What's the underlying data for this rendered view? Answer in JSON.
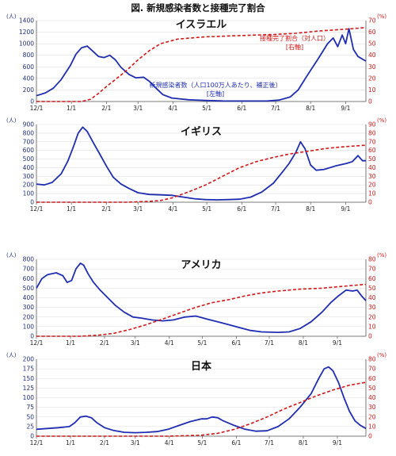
{
  "figure_title": "図. 新規感染者数と接種完了割合",
  "colors": {
    "cases": "#1f2db0",
    "vacc": "#d01818",
    "axis": "#555555",
    "grid": "#dddddd"
  },
  "chart_data": [
    {
      "type": "line",
      "title": "イスラエル",
      "x_ticks": [
        "12/1",
        "1/1",
        "2/1",
        "3/1",
        "4/1",
        "5/1",
        "6/1",
        "7/1",
        "8/1",
        "9/1"
      ],
      "left_unit": "(人)",
      "right_unit": "(%)",
      "ylim_left": [
        0,
        1400
      ],
      "yticks_left": [
        0,
        200,
        400,
        600,
        800,
        1000,
        1200,
        1400
      ],
      "ylim_right": [
        0,
        70
      ],
      "yticks_right": [
        0,
        10,
        20,
        30,
        40,
        50,
        60,
        70
      ],
      "annotation_right": [
        "接種完了割合（対人口）",
        "[右軸]"
      ],
      "annotation_left": [
        "新規感染者数（人口100万人あたり、補正後）",
        "[左軸]"
      ],
      "series": [
        {
          "axis": "left",
          "values": [
            [
              0,
              100
            ],
            [
              8,
              150
            ],
            [
              15,
              230
            ],
            [
              22,
              380
            ],
            [
              30,
              620
            ],
            [
              35,
              820
            ],
            [
              40,
              930
            ],
            [
              45,
              960
            ],
            [
              50,
              870
            ],
            [
              55,
              780
            ],
            [
              60,
              760
            ],
            [
              65,
              800
            ],
            [
              70,
              720
            ],
            [
              75,
              590
            ],
            [
              82,
              470
            ],
            [
              88,
              410
            ],
            [
              95,
              420
            ],
            [
              100,
              350
            ],
            [
              105,
              250
            ],
            [
              112,
              120
            ],
            [
              120,
              60
            ],
            [
              135,
              30
            ],
            [
              150,
              18
            ],
            [
              165,
              10
            ],
            [
              180,
              8
            ],
            [
              195,
              8
            ],
            [
              205,
              10
            ],
            [
              215,
              25
            ],
            [
              225,
              80
            ],
            [
              232,
              200
            ],
            [
              240,
              450
            ],
            [
              250,
              750
            ],
            [
              258,
              1000
            ],
            [
              263,
              1100
            ],
            [
              267,
              950
            ],
            [
              271,
              1150
            ],
            [
              274,
              1000
            ],
            [
              277,
              1260
            ],
            [
              281,
              900
            ],
            [
              285,
              780
            ],
            [
              290,
              720
            ],
            [
              292,
              700
            ]
          ]
        },
        {
          "axis": "right",
          "values": [
            [
              0,
              0
            ],
            [
              40,
              0
            ],
            [
              48,
              2
            ],
            [
              55,
              7
            ],
            [
              62,
              13
            ],
            [
              70,
              19
            ],
            [
              80,
              27
            ],
            [
              90,
              36
            ],
            [
              100,
              44
            ],
            [
              110,
              50
            ],
            [
              125,
              54
            ],
            [
              150,
              56
            ],
            [
              180,
              57
            ],
            [
              210,
              58
            ],
            [
              230,
              59
            ],
            [
              250,
              61
            ],
            [
              265,
              62
            ],
            [
              280,
              63
            ],
            [
              292,
              64
            ]
          ]
        }
      ]
    },
    {
      "type": "line",
      "title": "イギリス",
      "x_ticks": [
        "12/1",
        "1/1",
        "2/1",
        "3/1",
        "4/1",
        "5/1",
        "6/1",
        "7/1",
        "8/1",
        "9/1"
      ],
      "left_unit": "(人)",
      "right_unit": "(%)",
      "ylim_left": [
        0,
        900
      ],
      "yticks_left": [
        0,
        100,
        200,
        300,
        400,
        500,
        600,
        700,
        800,
        900
      ],
      "ylim_right": [
        0,
        90
      ],
      "yticks_right": [
        0,
        10,
        20,
        30,
        40,
        50,
        60,
        70,
        80,
        90
      ],
      "series": [
        {
          "axis": "left",
          "values": [
            [
              0,
              210
            ],
            [
              7,
              200
            ],
            [
              14,
              230
            ],
            [
              22,
              330
            ],
            [
              28,
              480
            ],
            [
              33,
              650
            ],
            [
              37,
              800
            ],
            [
              41,
              870
            ],
            [
              45,
              820
            ],
            [
              50,
              700
            ],
            [
              56,
              560
            ],
            [
              62,
              420
            ],
            [
              68,
              290
            ],
            [
              75,
              210
            ],
            [
              82,
              160
            ],
            [
              90,
              110
            ],
            [
              100,
              90
            ],
            [
              110,
              85
            ],
            [
              120,
              80
            ],
            [
              130,
              60
            ],
            [
              140,
              40
            ],
            [
              150,
              30
            ],
            [
              160,
              28
            ],
            [
              170,
              30
            ],
            [
              180,
              35
            ],
            [
              190,
              60
            ],
            [
              200,
              120
            ],
            [
              210,
              220
            ],
            [
              218,
              350
            ],
            [
              224,
              450
            ],
            [
              230,
              580
            ],
            [
              234,
              700
            ],
            [
              238,
              620
            ],
            [
              243,
              430
            ],
            [
              248,
              370
            ],
            [
              255,
              380
            ],
            [
              265,
              420
            ],
            [
              275,
              450
            ],
            [
              280,
              470
            ],
            [
              285,
              540
            ],
            [
              289,
              480
            ],
            [
              292,
              480
            ]
          ]
        },
        {
          "axis": "right",
          "values": [
            [
              0,
              0
            ],
            [
              80,
              0
            ],
            [
              100,
              1
            ],
            [
              110,
              2
            ],
            [
              120,
              5
            ],
            [
              135,
              12
            ],
            [
              150,
              20
            ],
            [
              165,
              30
            ],
            [
              180,
              40
            ],
            [
              195,
              47
            ],
            [
              210,
              52
            ],
            [
              225,
              56
            ],
            [
              240,
              59
            ],
            [
              255,
              62
            ],
            [
              270,
              64
            ],
            [
              292,
              66
            ]
          ]
        }
      ]
    },
    {
      "type": "line",
      "title": "アメリカ",
      "x_ticks": [
        "12/1",
        "1/1",
        "2/1",
        "3/1",
        "4/1",
        "5/1",
        "6/1",
        "7/1",
        "8/1",
        "9/1"
      ],
      "left_unit": "(人)",
      "right_unit": "(%)",
      "ylim_left": [
        0,
        800
      ],
      "yticks_left": [
        0,
        100,
        200,
        300,
        400,
        500,
        600,
        700,
        800
      ],
      "ylim_right": [
        0,
        80
      ],
      "yticks_right": [
        0,
        10,
        20,
        30,
        40,
        50,
        60,
        70,
        80
      ],
      "series": [
        {
          "axis": "left",
          "values": [
            [
              0,
              500
            ],
            [
              5,
              600
            ],
            [
              10,
              640
            ],
            [
              18,
              660
            ],
            [
              24,
              630
            ],
            [
              28,
              560
            ],
            [
              32,
              580
            ],
            [
              36,
              700
            ],
            [
              40,
              760
            ],
            [
              43,
              740
            ],
            [
              47,
              650
            ],
            [
              52,
              560
            ],
            [
              58,
              480
            ],
            [
              65,
              400
            ],
            [
              72,
              320
            ],
            [
              80,
              250
            ],
            [
              88,
              200
            ],
            [
              95,
              190
            ],
            [
              105,
              170
            ],
            [
              115,
              160
            ],
            [
              125,
              170
            ],
            [
              135,
              200
            ],
            [
              145,
              210
            ],
            [
              155,
              180
            ],
            [
              165,
              150
            ],
            [
              175,
              120
            ],
            [
              185,
              90
            ],
            [
              195,
              60
            ],
            [
              205,
              45
            ],
            [
              220,
              40
            ],
            [
              230,
              45
            ],
            [
              240,
              80
            ],
            [
              250,
              150
            ],
            [
              260,
              250
            ],
            [
              268,
              350
            ],
            [
              275,
              420
            ],
            [
              282,
              480
            ],
            [
              288,
              470
            ],
            [
              292,
              480
            ],
            [
              296,
              420
            ],
            [
              300,
              370
            ]
          ]
        },
        {
          "axis": "right",
          "values": [
            [
              0,
              0
            ],
            [
              40,
              0
            ],
            [
              55,
              1
            ],
            [
              70,
              3
            ],
            [
              85,
              7
            ],
            [
              100,
              12
            ],
            [
              115,
              18
            ],
            [
              130,
              24
            ],
            [
              145,
              30
            ],
            [
              160,
              35
            ],
            [
              175,
              38
            ],
            [
              190,
              42
            ],
            [
              205,
              45
            ],
            [
              220,
              47
            ],
            [
              240,
              49
            ],
            [
              260,
              50
            ],
            [
              280,
              52
            ],
            [
              300,
              54
            ]
          ]
        }
      ]
    },
    {
      "type": "line",
      "title": "日本",
      "x_ticks": [
        "12/1",
        "1/1",
        "2/1",
        "3/1",
        "4/1",
        "5/1",
        "6/1",
        "7/1",
        "8/1",
        "9/1"
      ],
      "left_unit": "(人)",
      "right_unit": "(%)",
      "ylim_left": [
        0,
        200
      ],
      "yticks_left": [
        0,
        25,
        50,
        75,
        100,
        125,
        150,
        175,
        200
      ],
      "ylim_right": [
        0,
        80
      ],
      "yticks_right": [
        0,
        10,
        20,
        30,
        40,
        50,
        60,
        70,
        80
      ],
      "series": [
        {
          "axis": "left",
          "values": [
            [
              0,
              18
            ],
            [
              10,
              20
            ],
            [
              20,
              22
            ],
            [
              30,
              25
            ],
            [
              35,
              35
            ],
            [
              40,
              50
            ],
            [
              45,
              52
            ],
            [
              50,
              48
            ],
            [
              55,
              35
            ],
            [
              62,
              22
            ],
            [
              70,
              15
            ],
            [
              80,
              10
            ],
            [
              90,
              9
            ],
            [
              100,
              10
            ],
            [
              110,
              12
            ],
            [
              120,
              18
            ],
            [
              130,
              28
            ],
            [
              140,
              38
            ],
            [
              150,
              45
            ],
            [
              155,
              45
            ],
            [
              160,
              50
            ],
            [
              165,
              48
            ],
            [
              170,
              40
            ],
            [
              180,
              28
            ],
            [
              190,
              18
            ],
            [
              200,
              13
            ],
            [
              210,
              14
            ],
            [
              220,
              25
            ],
            [
              230,
              45
            ],
            [
              240,
              75
            ],
            [
              250,
              110
            ],
            [
              257,
              150
            ],
            [
              262,
              175
            ],
            [
              266,
              180
            ],
            [
              270,
              170
            ],
            [
              275,
              140
            ],
            [
              280,
              100
            ],
            [
              285,
              65
            ],
            [
              290,
              40
            ],
            [
              295,
              28
            ],
            [
              300,
              20
            ]
          ]
        },
        {
          "axis": "right",
          "values": [
            [
              0,
              0
            ],
            [
              120,
              0
            ],
            [
              135,
              0.5
            ],
            [
              150,
              1
            ],
            [
              165,
              3
            ],
            [
              180,
              7
            ],
            [
              195,
              13
            ],
            [
              210,
              20
            ],
            [
              225,
              28
            ],
            [
              240,
              35
            ],
            [
              255,
              42
            ],
            [
              270,
              48
            ],
            [
              285,
              53
            ],
            [
              300,
              56
            ]
          ]
        }
      ]
    }
  ]
}
